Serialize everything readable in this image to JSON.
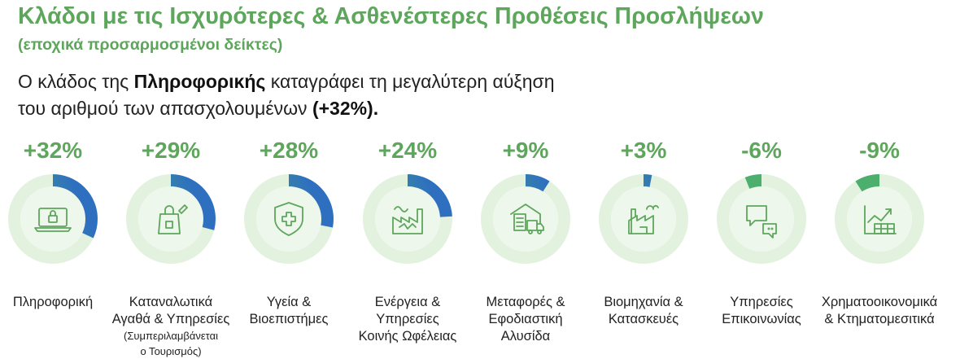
{
  "title": "Κλάδοι με τις Ισχυρότερες & Ασθενέστερες Προθέσεις Προσλήψεων",
  "subtitle": "(εποχικά προσαρμοσμένοι δείκτες)",
  "intro": {
    "line1_pre": "Ο κλάδος της ",
    "line1_bold": "Πληροφορικής",
    "line1_post": " καταγράφει τη μεγαλύτερη αύξηση",
    "line2_pre": "του αριθμού των απασχολουμένων ",
    "line2_bold": "(+32%)."
  },
  "colors": {
    "brand_green": "#5da65c",
    "ring_track": "#e3f1df",
    "ring_inner": "#eef7eb",
    "gradient_start": "#4caf6e",
    "gradient_end": "#2e6fc0"
  },
  "chart_data": {
    "type": "donut",
    "unit": "%",
    "sectors": [
      {
        "label_lines": [
          "Πληροφορική"
        ],
        "note_lines": [],
        "value": 32,
        "value_label": "+32%",
        "icon": "laptop-lock-icon"
      },
      {
        "label_lines": [
          "Καταναλωτικά",
          "Αγαθά & Υπηρεσίες"
        ],
        "note_lines": [
          "(Συμπεριλαμβάνεται",
          "ο Τουρισμός)"
        ],
        "value": 29,
        "value_label": "+29%",
        "icon": "shopping-bag-icon"
      },
      {
        "label_lines": [
          "Υγεία &",
          "Βιοεπιστήμες"
        ],
        "note_lines": [],
        "value": 28,
        "value_label": "+28%",
        "icon": "medical-shield-icon"
      },
      {
        "label_lines": [
          "Ενέργεια &",
          "Υπηρεσίες",
          "Κοινής Ωφέλειας"
        ],
        "note_lines": [],
        "value": 24,
        "value_label": "+24%",
        "icon": "energy-plant-icon"
      },
      {
        "label_lines": [
          "Μεταφορές &",
          "Εφοδιαστική",
          "Αλυσίδα"
        ],
        "note_lines": [],
        "value": 9,
        "value_label": "+9%",
        "icon": "warehouse-truck-icon"
      },
      {
        "label_lines": [
          "Βιομηχανία &",
          "Κατασκευές"
        ],
        "note_lines": [],
        "value": 3,
        "value_label": "+3%",
        "icon": "factory-icon"
      },
      {
        "label_lines": [
          "Υπηρεσίες",
          "Επικοινωνίας"
        ],
        "note_lines": [],
        "value": -6,
        "value_label": "-6%",
        "icon": "chat-bubbles-icon"
      },
      {
        "label_lines": [
          "Χρηματοοικονομικά",
          "& Κτηματομεσιτικά"
        ],
        "note_lines": [],
        "value": -9,
        "value_label": "-9%",
        "icon": "finance-chart-icon"
      }
    ]
  }
}
